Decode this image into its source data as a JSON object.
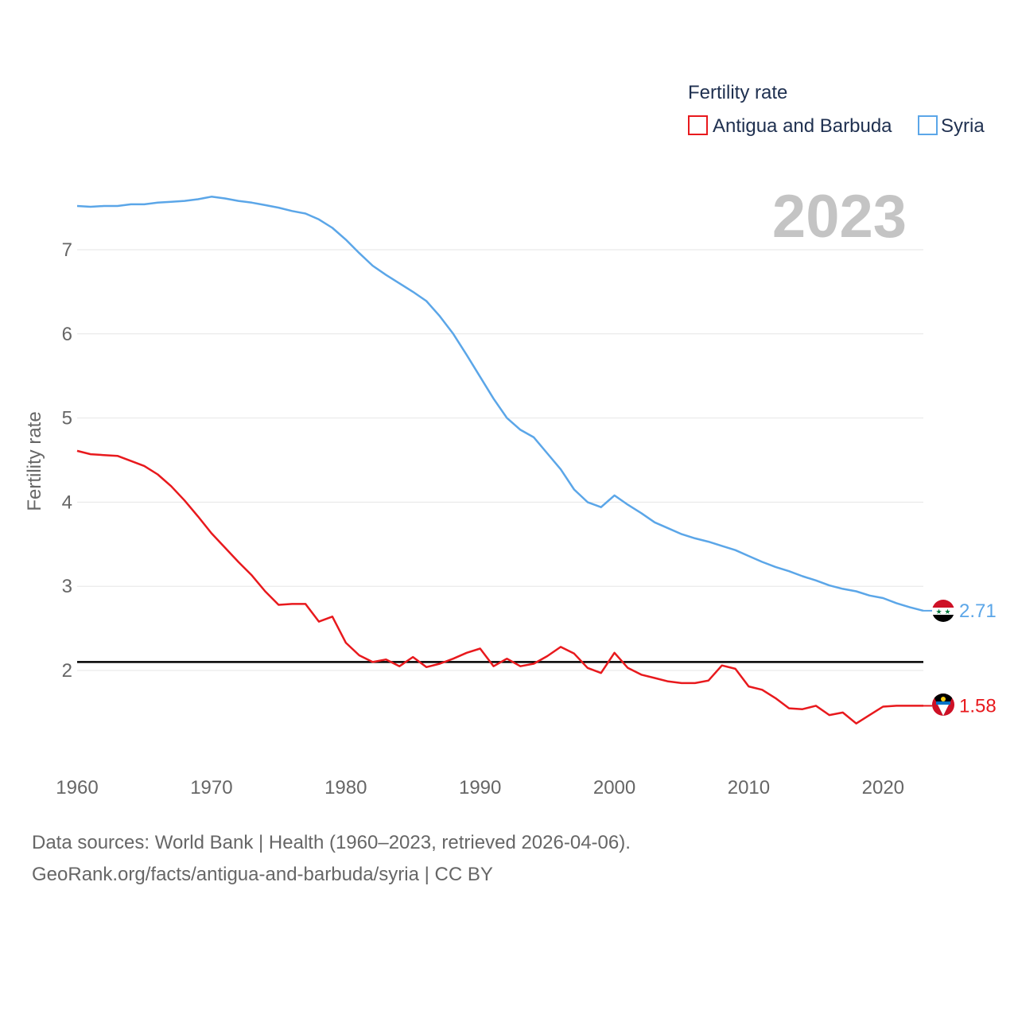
{
  "chart_data": {
    "type": "line",
    "title": "",
    "ylabel": "Fertility rate",
    "xlabel": "",
    "xlim": [
      1960,
      2023
    ],
    "ylim": [
      0.9,
      7.9
    ],
    "xticks": [
      1960,
      1970,
      1980,
      1990,
      2000,
      2010,
      2020
    ],
    "yticks": [
      2,
      3,
      4,
      5,
      6,
      7
    ],
    "current_year": "2023",
    "legend_title": "Fertility rate",
    "reference_line": 2.1,
    "x": [
      1960,
      1961,
      1962,
      1963,
      1964,
      1965,
      1966,
      1967,
      1968,
      1969,
      1970,
      1971,
      1972,
      1973,
      1974,
      1975,
      1976,
      1977,
      1978,
      1979,
      1980,
      1981,
      1982,
      1983,
      1984,
      1985,
      1986,
      1987,
      1988,
      1989,
      1990,
      1991,
      1992,
      1993,
      1994,
      1995,
      1996,
      1997,
      1998,
      1999,
      2000,
      2001,
      2002,
      2003,
      2004,
      2005,
      2006,
      2007,
      2008,
      2009,
      2010,
      2011,
      2012,
      2013,
      2014,
      2015,
      2016,
      2017,
      2018,
      2019,
      2020,
      2021,
      2022,
      2023
    ],
    "series": [
      {
        "name": "Antigua and Barbuda",
        "color": "#e8191d",
        "end_label": "1.58",
        "values": [
          4.61,
          4.57,
          4.56,
          4.55,
          4.49,
          4.43,
          4.33,
          4.19,
          4.02,
          3.83,
          3.63,
          3.46,
          3.29,
          3.13,
          2.94,
          2.78,
          2.79,
          2.79,
          2.58,
          2.64,
          2.33,
          2.18,
          2.1,
          2.13,
          2.05,
          2.16,
          2.04,
          2.08,
          2.14,
          2.21,
          2.26,
          2.05,
          2.14,
          2.05,
          2.08,
          2.17,
          2.28,
          2.2,
          2.03,
          1.97,
          2.21,
          2.03,
          1.95,
          1.91,
          1.87,
          1.85,
          1.85,
          1.88,
          2.06,
          2.02,
          1.81,
          1.77,
          1.67,
          1.55,
          1.54,
          1.58,
          1.47,
          1.5,
          1.37,
          1.47,
          1.57,
          1.58,
          1.58,
          1.58
        ]
      },
      {
        "name": "Syria",
        "color": "#5ba6e8",
        "end_label": "2.71",
        "values": [
          7.52,
          7.51,
          7.52,
          7.52,
          7.54,
          7.54,
          7.56,
          7.57,
          7.58,
          7.6,
          7.63,
          7.61,
          7.58,
          7.56,
          7.53,
          7.5,
          7.46,
          7.43,
          7.36,
          7.26,
          7.12,
          6.96,
          6.81,
          6.7,
          6.6,
          6.5,
          6.39,
          6.21,
          6.0,
          5.75,
          5.49,
          5.23,
          5.0,
          4.86,
          4.77,
          4.58,
          4.39,
          4.15,
          4.0,
          3.94,
          4.08,
          3.97,
          3.87,
          3.76,
          3.69,
          3.62,
          3.57,
          3.53,
          3.48,
          3.43,
          3.36,
          3.29,
          3.23,
          3.18,
          3.12,
          3.07,
          3.01,
          2.97,
          2.94,
          2.89,
          2.86,
          2.8,
          2.75,
          2.71
        ]
      }
    ]
  },
  "footer": {
    "line1": "Data sources: World Bank | Health (1960–2023, retrieved 2026-04-06).",
    "line2": "GeoRank.org/facts/antigua-and-barbuda/syria | CC BY"
  }
}
